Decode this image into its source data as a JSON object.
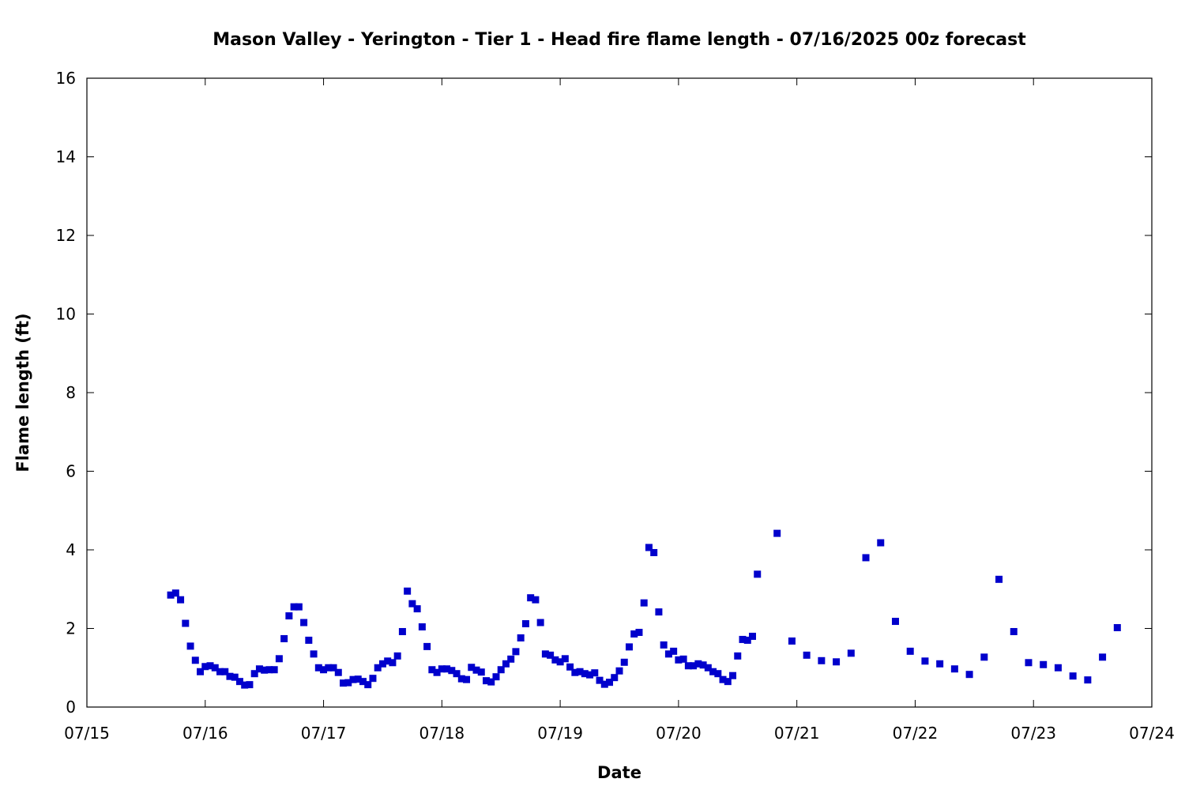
{
  "chart_data": {
    "type": "scatter",
    "title": "Mason Valley - Yerington - Tier 1 - Head fire flame length - 07/16/2025 00z forecast",
    "xlabel": "Date",
    "ylabel": "Flame length (ft)",
    "x_ticks": [
      "07/15",
      "07/16",
      "07/17",
      "07/18",
      "07/19",
      "07/20",
      "07/21",
      "07/22",
      "07/23",
      "07/24"
    ],
    "y_ticks": [
      "0",
      "2",
      "4",
      "6",
      "8",
      "10",
      "12",
      "14",
      "16"
    ],
    "xlim": [
      "07/15 00:00",
      "07/24 00:00"
    ],
    "ylim": [
      0,
      16
    ],
    "grid": false,
    "marker_color": "#0000cc",
    "series": [
      {
        "x": [
          "07/15 17:00",
          "07/15 18:00",
          "07/15 19:00",
          "07/15 20:00",
          "07/15 21:00",
          "07/15 22:00",
          "07/15 23:00",
          "07/16 00:00",
          "07/16 01:00",
          "07/16 02:00",
          "07/16 03:00",
          "07/16 04:00",
          "07/16 05:00",
          "07/16 06:00",
          "07/16 07:00",
          "07/16 08:00",
          "07/16 09:00",
          "07/16 10:00",
          "07/16 11:00",
          "07/16 12:00",
          "07/16 13:00",
          "07/16 14:00",
          "07/16 15:00",
          "07/16 16:00",
          "07/16 17:00",
          "07/16 18:00",
          "07/16 19:00",
          "07/16 20:00",
          "07/16 21:00",
          "07/16 22:00",
          "07/16 23:00",
          "07/17 00:00",
          "07/17 01:00",
          "07/17 02:00",
          "07/17 03:00",
          "07/17 04:00",
          "07/17 05:00",
          "07/17 06:00",
          "07/17 07:00",
          "07/17 08:00",
          "07/17 09:00",
          "07/17 10:00",
          "07/17 11:00",
          "07/17 12:00",
          "07/17 13:00",
          "07/17 14:00",
          "07/17 15:00",
          "07/17 16:00",
          "07/17 17:00",
          "07/17 18:00",
          "07/17 19:00",
          "07/17 20:00",
          "07/17 21:00",
          "07/17 22:00",
          "07/17 23:00",
          "07/18 00:00",
          "07/18 01:00",
          "07/18 02:00",
          "07/18 03:00",
          "07/18 04:00",
          "07/18 05:00",
          "07/18 06:00",
          "07/18 07:00",
          "07/18 08:00",
          "07/18 09:00",
          "07/18 10:00",
          "07/18 11:00",
          "07/18 12:00",
          "07/18 13:00",
          "07/18 14:00",
          "07/18 15:00",
          "07/18 16:00",
          "07/18 17:00",
          "07/18 18:00",
          "07/18 19:00",
          "07/18 20:00",
          "07/18 21:00",
          "07/18 22:00",
          "07/18 23:00",
          "07/19 00:00",
          "07/19 01:00",
          "07/19 02:00",
          "07/19 03:00",
          "07/19 04:00",
          "07/19 05:00",
          "07/19 06:00",
          "07/19 07:00",
          "07/19 08:00",
          "07/19 09:00",
          "07/19 10:00",
          "07/19 11:00",
          "07/19 12:00",
          "07/19 13:00",
          "07/19 14:00",
          "07/19 15:00",
          "07/19 16:00",
          "07/19 17:00",
          "07/19 18:00",
          "07/19 19:00",
          "07/19 20:00",
          "07/19 21:00",
          "07/19 22:00",
          "07/19 23:00",
          "07/20 00:00",
          "07/20 01:00",
          "07/20 02:00",
          "07/20 03:00",
          "07/20 04:00",
          "07/20 05:00",
          "07/20 06:00",
          "07/20 07:00",
          "07/20 08:00",
          "07/20 09:00",
          "07/20 10:00",
          "07/20 11:00",
          "07/20 12:00",
          "07/20 13:00",
          "07/20 14:00",
          "07/20 15:00",
          "07/20 16:00",
          "07/20 20:00",
          "07/20 23:00",
          "07/21 02:00",
          "07/21 05:00",
          "07/21 08:00",
          "07/21 11:00",
          "07/21 14:00",
          "07/21 17:00",
          "07/21 20:00",
          "07/21 23:00",
          "07/22 02:00",
          "07/22 05:00",
          "07/22 08:00",
          "07/22 11:00",
          "07/22 14:00",
          "07/22 17:00",
          "07/22 20:00",
          "07/22 23:00",
          "07/23 02:00",
          "07/23 05:00",
          "07/23 08:00",
          "07/23 11:00",
          "07/23 14:00",
          "07/23 17:00"
        ],
        "y": [
          2.85,
          2.9,
          2.73,
          2.13,
          1.55,
          1.19,
          0.9,
          1.03,
          1.05,
          1.0,
          0.9,
          0.9,
          0.78,
          0.76,
          0.65,
          0.56,
          0.57,
          0.85,
          0.97,
          0.94,
          0.95,
          0.95,
          1.23,
          1.74,
          2.32,
          2.55,
          2.55,
          2.15,
          1.7,
          1.35,
          1.0,
          0.95,
          1.0,
          1.0,
          0.88,
          0.61,
          0.62,
          0.7,
          0.71,
          0.65,
          0.57,
          0.73,
          1.0,
          1.1,
          1.17,
          1.13,
          1.3,
          1.92,
          2.95,
          2.63,
          2.5,
          2.04,
          1.54,
          0.95,
          0.88,
          0.97,
          0.97,
          0.93,
          0.85,
          0.72,
          0.7,
          1.01,
          0.94,
          0.89,
          0.67,
          0.64,
          0.77,
          0.95,
          1.1,
          1.22,
          1.41,
          1.76,
          2.12,
          2.78,
          2.73,
          2.15,
          1.35,
          1.32,
          1.2,
          1.15,
          1.23,
          1.02,
          0.88,
          0.9,
          0.85,
          0.82,
          0.87,
          0.68,
          0.58,
          0.63,
          0.75,
          0.92,
          1.14,
          1.53,
          1.86,
          1.9,
          2.65,
          4.06,
          3.93,
          2.42,
          1.58,
          1.35,
          1.42,
          1.2,
          1.22,
          1.05,
          1.05,
          1.1,
          1.07,
          1.0,
          0.9,
          0.85,
          0.7,
          0.65,
          0.8,
          1.3,
          1.72,
          1.7,
          1.8,
          3.38,
          4.42,
          1.68,
          1.32,
          1.18,
          1.15,
          1.37,
          3.8,
          4.18,
          2.18,
          1.42,
          1.17,
          1.1,
          0.97,
          0.83,
          1.27,
          3.25,
          1.92,
          1.13,
          1.08,
          1.0,
          0.79,
          0.69,
          1.27,
          2.02
        ]
      }
    ]
  }
}
